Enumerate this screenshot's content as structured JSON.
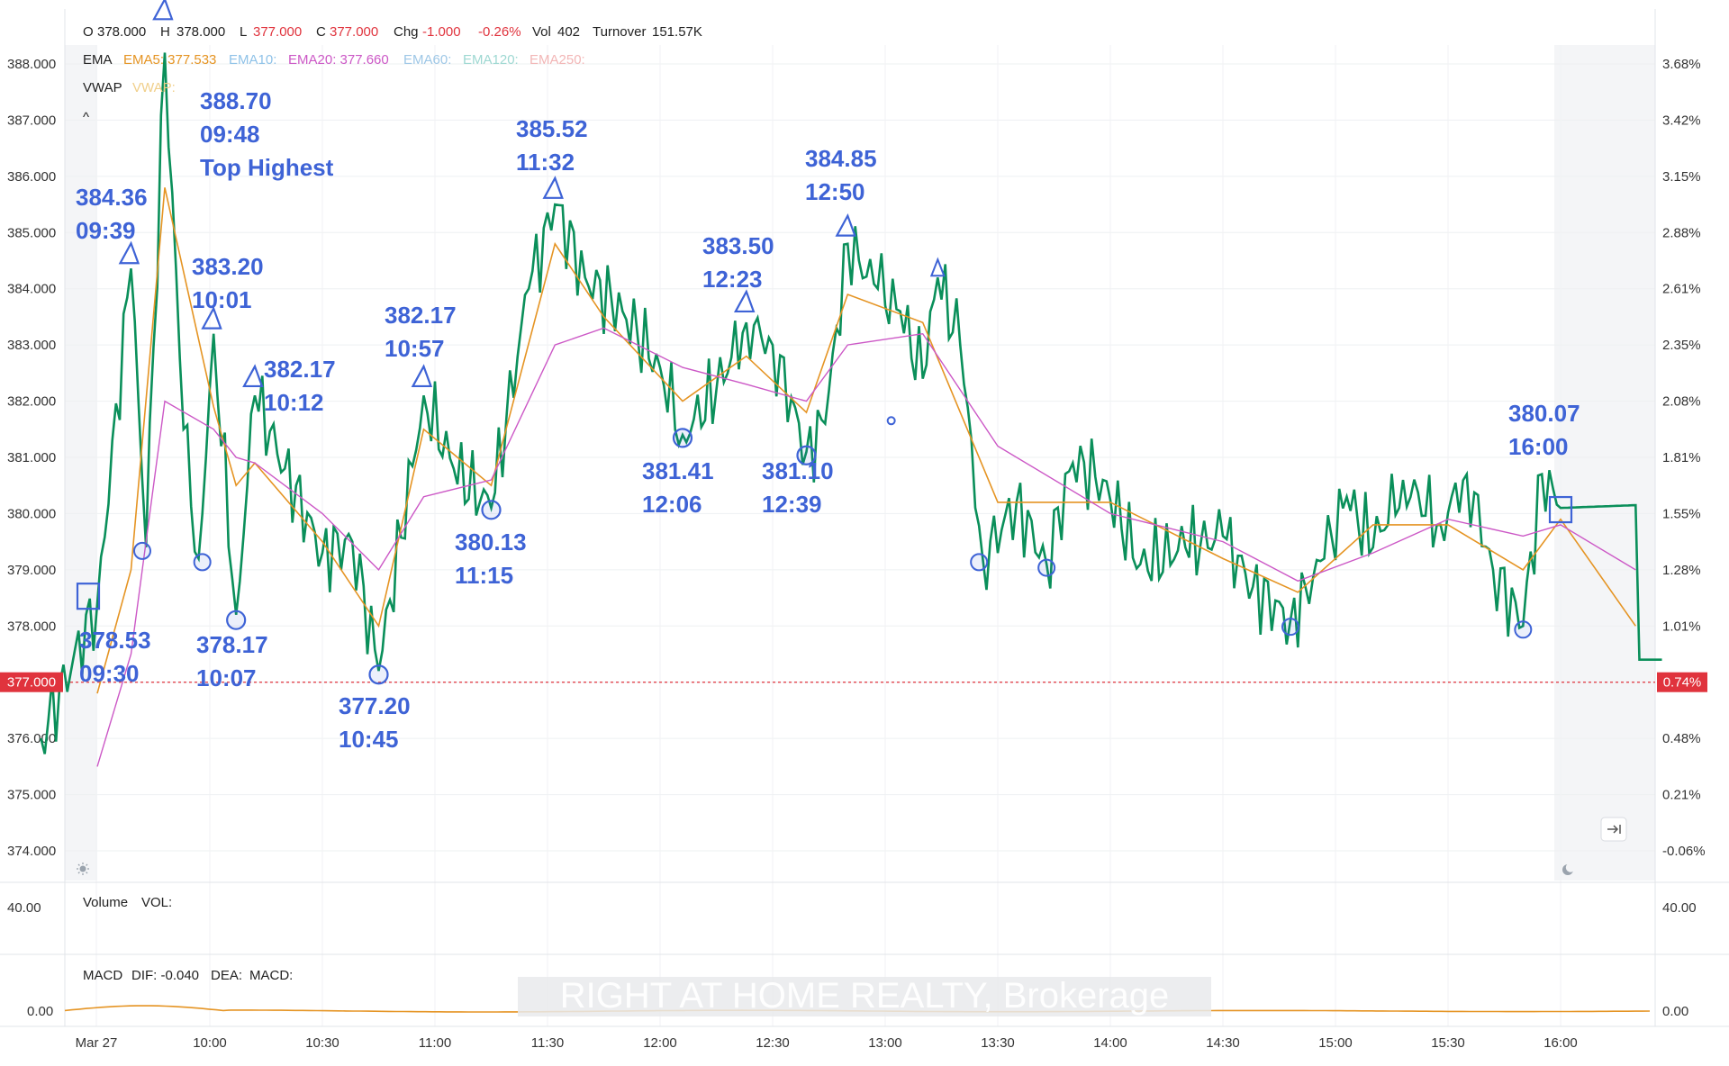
{
  "header": {
    "open_label": "O",
    "open": "378.000",
    "high_label": "H",
    "high": "378.000",
    "low_label": "L",
    "low": "377.000",
    "close_label": "C",
    "close": "377.000",
    "chg_label": "Chg",
    "chg": "-1.000",
    "chg_pct": "-0.26%",
    "vol_label": "Vol",
    "vol": "402",
    "turnover_label": "Turnover",
    "turnover": "151.57K"
  },
  "indicators": {
    "ema_label": "EMA",
    "ema5": "EMA5: 377.533",
    "ema10": "EMA10:",
    "ema20": "EMA20: 377.660",
    "ema60": "EMA60:",
    "ema120": "EMA120:",
    "ema250": "EMA250:",
    "vwap_label": "VWAP",
    "vwap": "VWAP:",
    "collapse_glyph": "^"
  },
  "volume_panel": {
    "label": "Volume",
    "value_label": "VOL:",
    "left_tick": "40.00",
    "right_tick": "40.00"
  },
  "macd_panel": {
    "label": "MACD",
    "dif": "DIF: -0.040",
    "dea": "DEA:",
    "macd": "MACD:",
    "left_tick": "0.00",
    "right_tick": "0.00"
  },
  "watermark": "RIGHT AT HOME REALTY, Brokerage",
  "price_tag": "377.000",
  "pct_tag": "0.74%",
  "icons": {
    "sun": "sun-icon",
    "moon": "moon-icon",
    "scroll": "scroll-to-latest-icon"
  },
  "colors": {
    "price_line": "#0a8f5a",
    "ema5": "#e59423",
    "ema20": "#cc58c6",
    "annotation": "#3e63d6",
    "down": "#e0333d",
    "up": "#1d9e62"
  },
  "chart_data": {
    "type": "line",
    "xlabel": "",
    "ylabel": "",
    "ylim": [
      373.5,
      388.3
    ],
    "y_ticks_left": [
      "388.000",
      "387.000",
      "386.000",
      "385.000",
      "384.000",
      "383.000",
      "382.000",
      "381.000",
      "380.000",
      "379.000",
      "378.000",
      "377.000",
      "376.000",
      "375.000",
      "374.000"
    ],
    "y_ticks_right": [
      "3.68%",
      "3.42%",
      "3.15%",
      "2.88%",
      "2.61%",
      "2.35%",
      "2.08%",
      "1.81%",
      "1.55%",
      "1.28%",
      "1.01%",
      "0.74%",
      "0.48%",
      "0.21%",
      "-0.06%"
    ],
    "x_ticks": [
      "Mar 27",
      "10:00",
      "10:30",
      "11:00",
      "11:30",
      "12:00",
      "12:30",
      "13:00",
      "13:30",
      "14:00",
      "14:30",
      "15:00",
      "15:30",
      "16:00"
    ],
    "grid": true,
    "last_price": 377.0,
    "series": [
      {
        "name": "EMA5",
        "x": [
          "09:30",
          "09:39",
          "09:48",
          "10:01",
          "10:07",
          "10:12",
          "10:30",
          "10:45",
          "10:57",
          "11:15",
          "11:32",
          "11:45",
          "12:06",
          "12:23",
          "12:39",
          "12:50",
          "13:10",
          "13:30",
          "14:00",
          "14:30",
          "14:50",
          "15:10",
          "15:30",
          "15:50",
          "16:00",
          "16:20"
        ],
        "values": [
          376.8,
          379.0,
          385.8,
          381.9,
          380.5,
          380.9,
          379.5,
          378.0,
          381.5,
          380.5,
          384.8,
          383.5,
          382.0,
          382.8,
          381.8,
          383.9,
          383.4,
          380.2,
          380.2,
          379.2,
          378.6,
          379.8,
          379.8,
          379.0,
          379.9,
          378.0
        ]
      },
      {
        "name": "EMA20",
        "x": [
          "09:30",
          "09:39",
          "09:48",
          "10:01",
          "10:07",
          "10:12",
          "10:30",
          "10:45",
          "10:57",
          "11:15",
          "11:32",
          "11:45",
          "12:06",
          "12:23",
          "12:39",
          "12:50",
          "13:10",
          "13:30",
          "14:00",
          "14:30",
          "14:50",
          "15:10",
          "15:30",
          "15:50",
          "16:00",
          "16:20"
        ],
        "values": [
          375.5,
          377.5,
          382.0,
          381.5,
          381.0,
          380.9,
          380.0,
          379.0,
          380.3,
          380.6,
          383.0,
          383.3,
          382.6,
          382.3,
          382.0,
          383.0,
          383.2,
          381.2,
          380.0,
          379.5,
          378.8,
          379.3,
          379.9,
          379.6,
          379.8,
          379.0
        ]
      }
    ],
    "annotations": [
      {
        "kind": "square",
        "x": "09:30",
        "y": 378.53,
        "label": "378.53",
        "time": "09:30"
      },
      {
        "kind": "triangle",
        "x": "09:39",
        "y": 384.36,
        "label": "384.36",
        "time": "09:39"
      },
      {
        "kind": "triangle",
        "x": "09:48",
        "y": 388.7,
        "label": "388.70",
        "time": "09:48",
        "note": "Top Highest"
      },
      {
        "kind": "triangle",
        "x": "10:01",
        "y": 383.2,
        "label": "383.20",
        "time": "10:01"
      },
      {
        "kind": "circle",
        "x": "10:07",
        "y": 378.17,
        "label": "378.17",
        "time": "10:07"
      },
      {
        "kind": "triangle",
        "x": "10:12",
        "y": 382.17,
        "label": "382.17",
        "time": "10:12"
      },
      {
        "kind": "circle",
        "x": "10:45",
        "y": 377.2,
        "label": "377.20",
        "time": "10:45"
      },
      {
        "kind": "triangle",
        "x": "10:57",
        "y": 382.17,
        "label": "382.17",
        "time": "10:57"
      },
      {
        "kind": "circle",
        "x": "11:15",
        "y": 380.13,
        "label": "380.13",
        "time": "11:15"
      },
      {
        "kind": "triangle",
        "x": "11:32",
        "y": 385.52,
        "label": "385.52",
        "time": "11:32"
      },
      {
        "kind": "circle",
        "x": "12:06",
        "y": 381.41,
        "label": "381.41",
        "time": "12:06"
      },
      {
        "kind": "triangle",
        "x": "12:23",
        "y": 383.5,
        "label": "383.50",
        "time": "12:23"
      },
      {
        "kind": "circle",
        "x": "12:39",
        "y": 381.1,
        "label": "381.10",
        "time": "12:39"
      },
      {
        "kind": "triangle",
        "x": "12:50",
        "y": 384.85,
        "label": "384.85",
        "time": "12:50"
      },
      {
        "kind": "square",
        "x": "16:00",
        "y": 380.07,
        "label": "380.07",
        "time": "16:00"
      }
    ]
  }
}
